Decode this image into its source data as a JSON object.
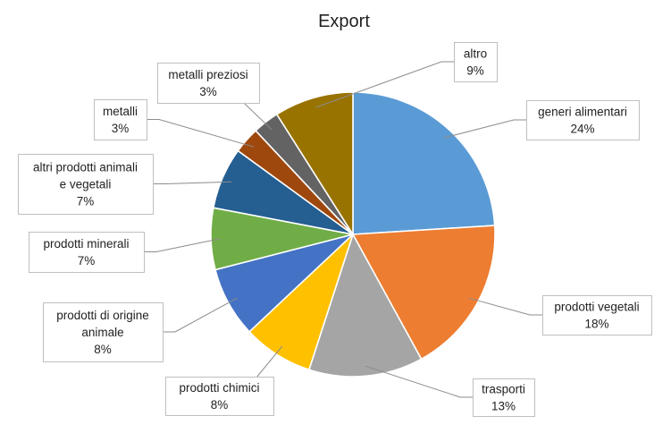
{
  "chart_data": {
    "type": "pie",
    "title": "Export",
    "start_angle_deg": 0,
    "direction": "clockwise",
    "slices": [
      {
        "label": "generi alimentari",
        "value": 24,
        "value_label": "24%",
        "color": "#5b9bd5"
      },
      {
        "label": "prodotti vegetali",
        "value": 18,
        "value_label": "18%",
        "color": "#ed7d31"
      },
      {
        "label": "trasporti",
        "value": 13,
        "value_label": "13%",
        "color": "#a5a5a5"
      },
      {
        "label": "prodotti chimici",
        "value": 8,
        "value_label": "8%",
        "color": "#ffc000"
      },
      {
        "label": "prodotti di origine animale",
        "value": 8,
        "value_label": "8%",
        "color": "#4472c4"
      },
      {
        "label": "prodotti minerali",
        "value": 7,
        "value_label": "7%",
        "color": "#70ad47"
      },
      {
        "label": "altri prodotti animali e vegetali",
        "value": 7,
        "value_label": "7%",
        "color": "#255e91"
      },
      {
        "label": "metalli",
        "value": 3,
        "value_label": "3%",
        "color": "#9e480e"
      },
      {
        "label": "metalli preziosi",
        "value": 3,
        "value_label": "3%",
        "color": "#636363"
      },
      {
        "label": "altro",
        "value": 9,
        "value_label": "9%",
        "color": "#997300"
      }
    ]
  }
}
